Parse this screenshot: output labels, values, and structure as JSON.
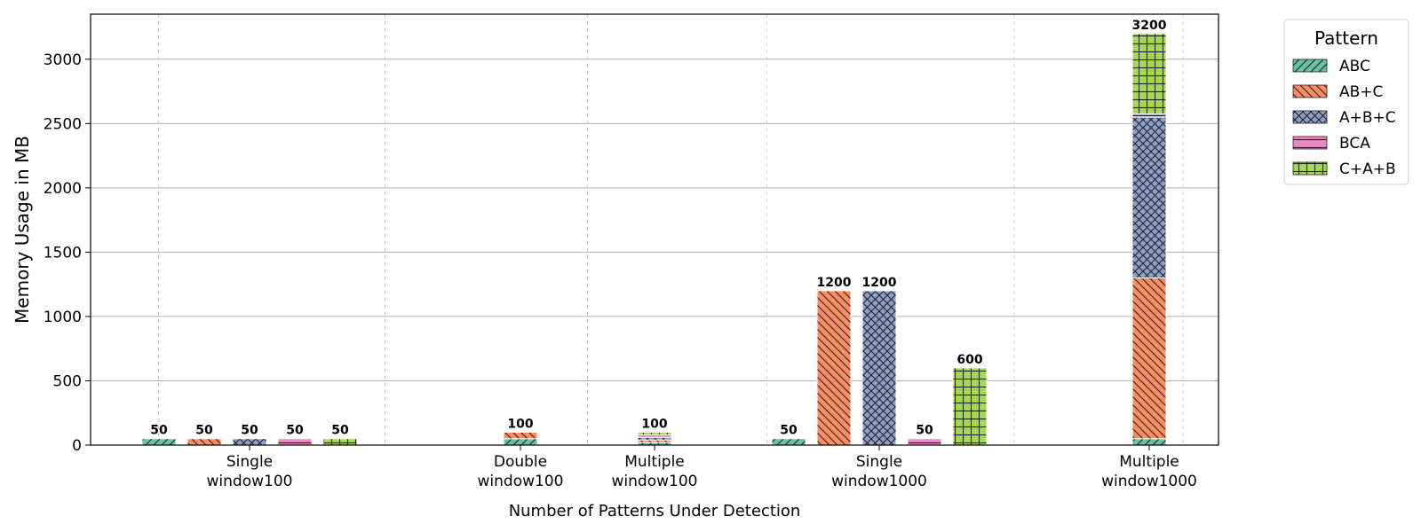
{
  "chart_data": {
    "type": "bar",
    "stacked": true,
    "ylabel": "Memory Usage in MB",
    "xlabel": "Number of Patterns Under Detection",
    "ylim": [
      0,
      3350
    ],
    "yticks": [
      0,
      500,
      1000,
      1500,
      2000,
      2500,
      3000
    ],
    "grid": {
      "y_major": true,
      "x_minor_dashed": true
    },
    "legend": {
      "title": "Pattern",
      "placement": "outside-top-right"
    },
    "groups": [
      {
        "label_line1": "Single",
        "label_line2": "window100"
      },
      {
        "label_line1": "Double",
        "label_line2": "window100"
      },
      {
        "label_line1": "Multiple",
        "label_line2": "window100"
      },
      {
        "label_line1": "Single",
        "label_line2": "window1000"
      },
      {
        "label_line1": "Multiple",
        "label_line2": "window1000"
      }
    ],
    "series": [
      {
        "name": "ABC",
        "color": "#66c2a5",
        "hatch": "diag-up"
      },
      {
        "name": "AB+C",
        "color": "#fc8d62",
        "hatch": "diag-down"
      },
      {
        "name": "A+B+C",
        "color": "#8da0cb",
        "hatch": "cross"
      },
      {
        "name": "BCA",
        "color": "#e78ac3",
        "hatch": "horizontal"
      },
      {
        "name": "C+A+B",
        "color": "#a6d854",
        "hatch": "grid"
      }
    ],
    "bars": [
      {
        "group": 0,
        "slot": 0,
        "segments": [
          {
            "series": 0,
            "value": 50
          }
        ],
        "label": "50"
      },
      {
        "group": 0,
        "slot": 1,
        "segments": [
          {
            "series": 1,
            "value": 50
          }
        ],
        "label": "50"
      },
      {
        "group": 0,
        "slot": 2,
        "segments": [
          {
            "series": 2,
            "value": 50
          }
        ],
        "label": "50"
      },
      {
        "group": 0,
        "slot": 3,
        "segments": [
          {
            "series": 3,
            "value": 50
          }
        ],
        "label": "50"
      },
      {
        "group": 0,
        "slot": 4,
        "segments": [
          {
            "series": 4,
            "value": 50
          }
        ],
        "label": "50"
      },
      {
        "group": 1,
        "slot": 0,
        "segments": [
          {
            "series": 0,
            "value": 50
          },
          {
            "series": 1,
            "value": 50
          }
        ],
        "label": "100"
      },
      {
        "group": 2,
        "slot": 0,
        "segments": [
          {
            "series": 0,
            "value": 20
          },
          {
            "series": 1,
            "value": 20
          },
          {
            "series": 2,
            "value": 20
          },
          {
            "series": 3,
            "value": 20
          },
          {
            "series": 4,
            "value": 20
          }
        ],
        "label": "100"
      },
      {
        "group": 3,
        "slot": 0,
        "segments": [
          {
            "series": 0,
            "value": 50
          }
        ],
        "label": "50"
      },
      {
        "group": 3,
        "slot": 1,
        "segments": [
          {
            "series": 1,
            "value": 1200
          }
        ],
        "label": "1200"
      },
      {
        "group": 3,
        "slot": 2,
        "segments": [
          {
            "series": 2,
            "value": 1200
          }
        ],
        "label": "1200"
      },
      {
        "group": 3,
        "slot": 3,
        "segments": [
          {
            "series": 3,
            "value": 50
          }
        ],
        "label": "50"
      },
      {
        "group": 3,
        "slot": 4,
        "segments": [
          {
            "series": 4,
            "value": 600
          }
        ],
        "label": "600"
      },
      {
        "group": 4,
        "slot": 0,
        "segments": [
          {
            "series": 0,
            "value": 50
          },
          {
            "series": 1,
            "value": 1250
          },
          {
            "series": 2,
            "value": 1250
          },
          {
            "series": 3,
            "value": 25
          },
          {
            "series": 4,
            "value": 625
          }
        ],
        "label": "3200"
      }
    ]
  }
}
